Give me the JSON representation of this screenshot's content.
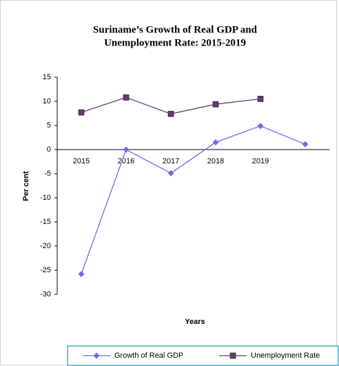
{
  "chart_data": {
    "type": "line",
    "title": [
      "Suriname’s Growth of Real GDP and",
      "Unemployment Rate: 2015-2019"
    ],
    "x_label": "Years",
    "y_label": "Per cent",
    "categories": [
      "2015",
      "2016",
      "2017",
      "2018",
      "2019",
      null
    ],
    "series": [
      {
        "name": "Growth of Real GDP",
        "color": "#6b6bf0",
        "marker": "diamond",
        "values": [
          -25.8,
          0,
          -4.9,
          1.5,
          4.9,
          1.1
        ]
      },
      {
        "name": "Unemployment Rate",
        "color": "#5f3d70",
        "marker": "square",
        "values": [
          7.7,
          10.8,
          7.4,
          9.4,
          10.5,
          null
        ]
      }
    ],
    "ylim": [
      -30,
      15
    ],
    "yticks": [
      -30,
      -25,
      -20,
      -15,
      -10,
      -5,
      0,
      5,
      10,
      15
    ],
    "grid": false,
    "legend": "bottom"
  }
}
